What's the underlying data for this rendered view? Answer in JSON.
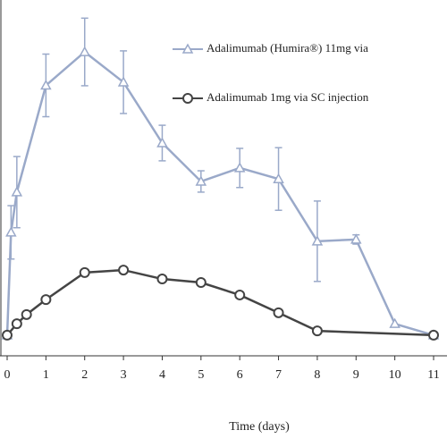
{
  "chart_data": {
    "type": "line",
    "xlabel": "Time (days)",
    "xlim": [
      0,
      11
    ],
    "xticks": [
      0,
      1,
      2,
      3,
      4,
      5,
      6,
      7,
      8,
      9,
      10,
      11
    ],
    "ylim": [
      0,
      10
    ],
    "series": [
      {
        "name": "Adalimumab (Humira®) 11mg via",
        "color": "#9aa9c9",
        "marker": "triangle",
        "x": [
          0,
          0.1,
          0.25,
          1,
          2,
          3,
          4,
          5,
          6,
          7,
          8,
          9,
          10,
          11
        ],
        "values": [
          0.58,
          3.47,
          4.6,
          7.6,
          8.54,
          7.69,
          5.98,
          4.9,
          5.28,
          4.97,
          3.22,
          3.27,
          0.9,
          0.58
        ],
        "errors": [
          0,
          0.75,
          1,
          0.88,
          0.95,
          0.88,
          0.5,
          0.3,
          0.55,
          0.88,
          1.13,
          0.13,
          0,
          0
        ]
      },
      {
        "name": "Adalimumab 1mg via SC injection",
        "color": "#444444",
        "marker": "circle",
        "x": [
          0,
          0.25,
          0.5,
          1,
          2,
          3,
          4,
          5,
          6,
          7,
          8,
          11
        ],
        "values": [
          0.58,
          0.9,
          1.16,
          1.58,
          2.34,
          2.41,
          2.16,
          2.06,
          1.71,
          1.21,
          0.7,
          0.58
        ]
      }
    ]
  }
}
